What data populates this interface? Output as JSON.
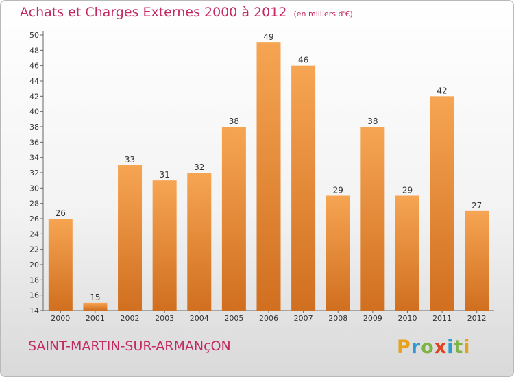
{
  "chart_data": {
    "type": "bar",
    "title": "Achats et Charges Externes 2000 à 2012",
    "subtitle": "(en milliers d'€)",
    "categories": [
      "2000",
      "2001",
      "2002",
      "2003",
      "2004",
      "2005",
      "2006",
      "2007",
      "2008",
      "2009",
      "2010",
      "2011",
      "2012"
    ],
    "values": [
      26,
      15,
      33,
      31,
      32,
      38,
      49,
      46,
      29,
      38,
      29,
      42,
      27
    ],
    "ylim": [
      14,
      50
    ],
    "yticks": [
      "14",
      "16",
      "18",
      "20",
      "22",
      "24",
      "26",
      "28",
      "30",
      "32",
      "34",
      "36",
      "38",
      "40",
      "42",
      "44",
      "46",
      "48",
      "50"
    ],
    "xlabel": "",
    "ylabel": "",
    "grid": false,
    "bar_color": "#e8893a"
  },
  "footer": {
    "place": "SAINT-MARTIN-SUR-ARMANçON",
    "logo_letters": [
      "P",
      "r",
      "o",
      "x",
      "i",
      "t",
      "i"
    ]
  }
}
